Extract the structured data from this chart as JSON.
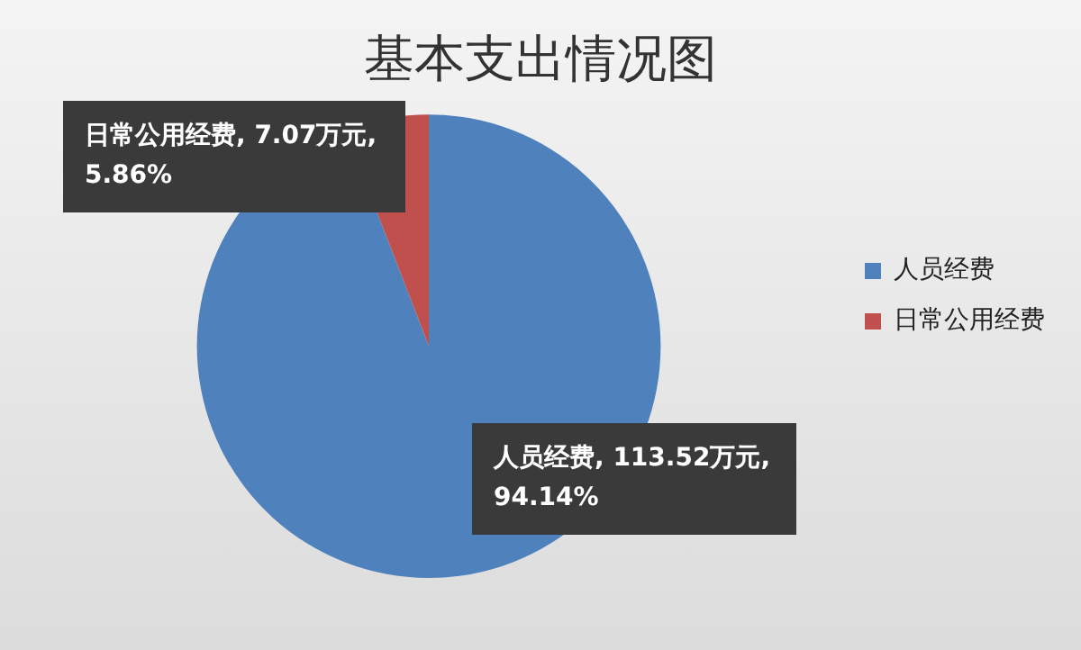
{
  "chart_data": {
    "type": "pie",
    "title": "基本支出情况图",
    "categories": [
      "人员经费",
      "日常公用经费"
    ],
    "values": [
      113.52,
      7.07
    ],
    "colors": [
      "#4f81bd",
      "#c0504d"
    ],
    "value_labels": [
      "人员经费, 113.52万元, 94.14%",
      "日常公用经费, 7.07万元, 5.86%"
    ],
    "legend": "right"
  }
}
